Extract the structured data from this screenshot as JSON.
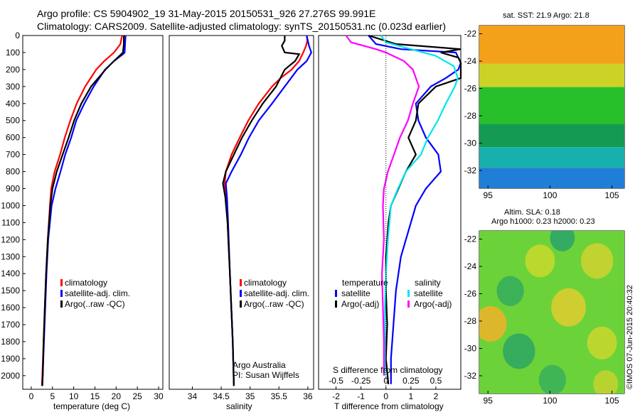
{
  "titles": {
    "line1": "Argo profile: CS 5904902_19 31-May-2015 20150531_926 27.276S 99.991E",
    "line2": "Climatology: CARS2009. Satellite-adjusted climatology: synTS_20150531.nc (0.023d earlier)"
  },
  "footer_stamp": "©IMOS 07-Jun-2015 20:40:32",
  "colors": {
    "climatology": "#ff0000",
    "satellite": "#0000ff",
    "argo": "#000000",
    "cyan": "#00e5ee",
    "magenta": "#ff00ff"
  },
  "chart_data": [
    {
      "type": "line",
      "title": "",
      "xlabel": "temperature (deg C)",
      "ylabel": "",
      "xlim": [
        -2,
        31
      ],
      "ylim": [
        2080,
        0
      ],
      "xticks": [
        "0",
        "5",
        "10",
        "15",
        "20",
        "25",
        "30"
      ],
      "yticks": [
        "0",
        "100",
        "200",
        "300",
        "400",
        "500",
        "600",
        "700",
        "800",
        "900",
        "1000",
        "1100",
        "1200",
        "1300",
        "1400",
        "1500",
        "1600",
        "1700",
        "1800",
        "1900",
        "2000"
      ],
      "legend": [
        "climatology",
        "satellite-adj. clim.",
        "Argo(..raw -QC)"
      ],
      "legend_position": "center",
      "series": [
        {
          "name": "climatology",
          "color": "#ff0000",
          "depth": [
            0,
            10,
            50,
            100,
            150,
            200,
            300,
            400,
            500,
            600,
            700,
            800,
            900,
            1000,
            1200,
            1400,
            1600,
            1800,
            2000,
            2060
          ],
          "values": [
            21.5,
            21.3,
            21,
            19.5,
            17.2,
            15.3,
            12.7,
            10.7,
            9.2,
            7.9,
            6.8,
            5.5,
            4.7,
            4.4,
            3.9,
            3.5,
            3.2,
            2.9,
            2.6,
            2.5
          ]
        },
        {
          "name": "satellite-adj. clim.",
          "color": "#0000ff",
          "depth": [
            0,
            10,
            50,
            100,
            110,
            150,
            200,
            300,
            400,
            500,
            600,
            700,
            800,
            900,
            1000,
            1200,
            1400,
            1600,
            1800,
            2000,
            2060
          ],
          "values": [
            22.2,
            22.2,
            22.1,
            22.0,
            21.6,
            19.5,
            17.4,
            14.7,
            12.5,
            10.6,
            9.4,
            8.0,
            6.9,
            5.7,
            4.8,
            4.0,
            3.6,
            3.3,
            3.0,
            2.7,
            2.6
          ]
        },
        {
          "name": "Argo(..raw -QC)",
          "color": "#000000",
          "depth": [
            0,
            10,
            50,
            100,
            110,
            150,
            200,
            300,
            400,
            500,
            600,
            700,
            800,
            900,
            1000,
            1200,
            1400,
            1600,
            1800,
            2000,
            2060
          ],
          "values": [
            21.9,
            21.8,
            21.8,
            21.6,
            21.2,
            19.5,
            17.5,
            14.1,
            11.8,
            10.1,
            8.8,
            7.4,
            6.0,
            5.0,
            4.5,
            3.9,
            3.5,
            3.2,
            2.9,
            2.7,
            2.6
          ]
        }
      ]
    },
    {
      "type": "line",
      "xlabel": "salinity",
      "xlim": [
        33.6,
        36.1
      ],
      "ylim": [
        2080,
        0
      ],
      "xticks": [
        "34",
        "34.5",
        "35",
        "35.5",
        "36"
      ],
      "legend": [
        "climatology",
        "satellite-adj. clim.",
        "Argo(..raw -QC)"
      ],
      "annotation": [
        "Argo Australia",
        "PI: Susan Wijffels"
      ],
      "series": [
        {
          "name": "climatology",
          "color": "#ff0000",
          "depth": [
            0,
            30,
            60,
            100,
            150,
            200,
            250,
            300,
            400,
            500,
            600,
            700,
            800,
            870,
            950,
            1100,
            1400,
            1800,
            2060
          ],
          "values": [
            35.98,
            35.99,
            35.97,
            35.92,
            35.85,
            35.72,
            35.53,
            35.38,
            35.15,
            34.97,
            34.82,
            34.68,
            34.58,
            34.56,
            34.58,
            34.61,
            34.65,
            34.7,
            34.72
          ]
        },
        {
          "name": "satellite-adj. clim.",
          "color": "#0000ff",
          "depth": [
            0,
            30,
            60,
            100,
            150,
            200,
            300,
            400,
            500,
            600,
            700,
            800,
            870,
            950,
            1100,
            1400,
            1800,
            2060
          ],
          "values": [
            35.98,
            36.0,
            36.02,
            36.06,
            35.98,
            35.82,
            35.6,
            35.38,
            35.15,
            34.98,
            34.84,
            34.68,
            34.58,
            34.6,
            34.62,
            34.65,
            34.7,
            34.72
          ]
        },
        {
          "name": "Argo(..raw -QC)",
          "color": "#000000",
          "depth": [
            0,
            30,
            60,
            100,
            110,
            150,
            200,
            300,
            400,
            500,
            600,
            700,
            800,
            870,
            950,
            1100,
            1400,
            1800,
            2060
          ],
          "values": [
            35.6,
            35.6,
            35.55,
            35.6,
            35.85,
            35.78,
            35.6,
            35.45,
            35.22,
            35.03,
            34.86,
            34.72,
            34.58,
            34.53,
            34.57,
            34.61,
            34.65,
            34.7,
            34.72
          ]
        }
      ]
    },
    {
      "type": "line",
      "xlabel": "T difference from climatology",
      "xlabel_top": "S difference from climatology",
      "xlim": [
        -2.7,
        3.0
      ],
      "ylim": [
        2080,
        0
      ],
      "xticks": [
        "-2",
        "-1",
        "0",
        "1",
        "2"
      ],
      "xticks_salinity": [
        "-0.5",
        "-0.25",
        "0",
        "0.25",
        "0.5"
      ],
      "legend_temperature": [
        "satellite",
        "Argo(-adj)"
      ],
      "legend_salinity": [
        "satellite",
        "Argo(-adj)"
      ],
      "legend_headers": [
        "temperature",
        "salinity"
      ],
      "series": [
        {
          "name": "temperature satellite",
          "color": "#0000ff",
          "depth": [
            0,
            50,
            80,
            100,
            130,
            160,
            200,
            250,
            300,
            400,
            500,
            600,
            700,
            800,
            900,
            1000,
            1100,
            1200,
            1300,
            1500,
            1700,
            1900,
            2050
          ],
          "values": [
            -0.7,
            -0.4,
            0.6,
            2.8,
            2.9,
            3.0,
            2.9,
            2.4,
            1.8,
            1.2,
            1.3,
            1.6,
            2.1,
            2.2,
            1.6,
            1.2,
            1.0,
            0.8,
            0.6,
            0.4,
            0.3,
            0.2,
            0.2
          ]
        },
        {
          "name": "temperature Argo(-adj)",
          "color": "#000000",
          "depth": [
            0,
            50,
            80,
            100,
            130,
            160,
            200,
            250,
            300,
            400,
            500,
            600,
            700,
            800,
            900,
            1000,
            1100,
            1200,
            1300,
            1500,
            1700,
            1900,
            2050
          ],
          "values": [
            -0.7,
            0.4,
            3.0,
            2.2,
            2.9,
            3.0,
            3.0,
            3.0,
            2.0,
            1.3,
            1.2,
            0.9,
            1.2,
            0.8,
            0.5,
            0.2,
            0.1,
            0.05,
            0.0,
            0.0,
            0.05,
            0.0,
            0.1
          ]
        },
        {
          "name": "salinity satellite",
          "color": "#00e5ee",
          "depth": [
            0,
            40,
            80,
            120,
            180,
            250,
            300,
            400,
            500,
            600,
            700,
            800,
            900,
            1000,
            1200,
            1400,
            1600,
            1800,
            2000
          ],
          "values": [
            -0.05,
            0.0,
            0.25,
            0.5,
            0.68,
            0.72,
            0.69,
            0.6,
            0.52,
            0.42,
            0.35,
            0.2,
            0.12,
            0.05,
            0.02,
            0.0,
            -0.01,
            -0.01,
            -0.01
          ]
        },
        {
          "name": "salinity Argo(-adj)",
          "color": "#ff00ff",
          "depth": [
            0,
            40,
            80,
            100,
            150,
            200,
            300,
            400,
            500,
            600,
            700,
            800,
            900,
            1000,
            1200,
            1400,
            1600,
            1800,
            2000
          ],
          "values": [
            -0.4,
            -0.35,
            -0.1,
            0.0,
            0.18,
            0.27,
            0.33,
            0.27,
            0.22,
            0.14,
            0.08,
            0.02,
            -0.02,
            -0.03,
            -0.02,
            -0.04,
            -0.03,
            -0.02,
            -0.02
          ]
        }
      ]
    },
    {
      "type": "heatmap",
      "title": "sat. SST: 21.9 Argo: 21.8",
      "xticks": [
        "95",
        "100",
        "105"
      ],
      "yticks": [
        "-22",
        "-24",
        "-26",
        "-28",
        "-30",
        "-32"
      ],
      "xlim": [
        94.3,
        106
      ],
      "ylim": [
        -33.3,
        -21.4
      ],
      "bands": [
        {
          "lat_from": -21.4,
          "lat_to": -24.2,
          "color": "#f3a11a"
        },
        {
          "lat_from": -24.2,
          "lat_to": -25.9,
          "color": "#cdd227"
        },
        {
          "lat_from": -25.9,
          "lat_to": -28.6,
          "color": "#27c02b"
        },
        {
          "lat_from": -28.6,
          "lat_to": -30.3,
          "color": "#149a52"
        },
        {
          "lat_from": -30.3,
          "lat_to": -31.8,
          "color": "#18b0ad"
        },
        {
          "lat_from": -31.8,
          "lat_to": -33.3,
          "color": "#1f7fd6"
        }
      ]
    },
    {
      "type": "heatmap",
      "title_lines": [
        "Altim. SLA: 0.18",
        "Argo h1000: 0.23 h2000: 0.23"
      ],
      "xticks": [
        "95",
        "100",
        "105"
      ],
      "yticks": [
        "-22",
        "-24",
        "-26",
        "-28",
        "-30",
        "-32"
      ],
      "xlim": [
        94.3,
        106
      ],
      "ylim": [
        -33.3,
        -21.4
      ],
      "background_color": "#6cd23a",
      "blobs": [
        {
          "lon": 95.2,
          "lat": -28.2,
          "r": 1.3,
          "color": "#f0b32a"
        },
        {
          "lon": 99.2,
          "lat": -23.6,
          "r": 1.2,
          "color": "#c9d92e"
        },
        {
          "lon": 103.8,
          "lat": -23.6,
          "r": 1.3,
          "color": "#d0d32f"
        },
        {
          "lon": 101.5,
          "lat": -27.0,
          "r": 1.4,
          "color": "#dfce2f"
        },
        {
          "lon": 104.2,
          "lat": -29.6,
          "r": 1.2,
          "color": "#c9d82e"
        },
        {
          "lon": 101.0,
          "lat": -21.9,
          "r": 1.0,
          "color": "#2aa46a"
        },
        {
          "lon": 96.8,
          "lat": -25.8,
          "r": 1.1,
          "color": "#34ad5e"
        },
        {
          "lon": 97.5,
          "lat": -30.2,
          "r": 1.3,
          "color": "#2da763"
        },
        {
          "lon": 100.2,
          "lat": -32.3,
          "r": 1.1,
          "color": "#38b05a"
        },
        {
          "lon": 104.5,
          "lat": -32.6,
          "r": 1.0,
          "color": "#c5d32e"
        }
      ]
    }
  ]
}
